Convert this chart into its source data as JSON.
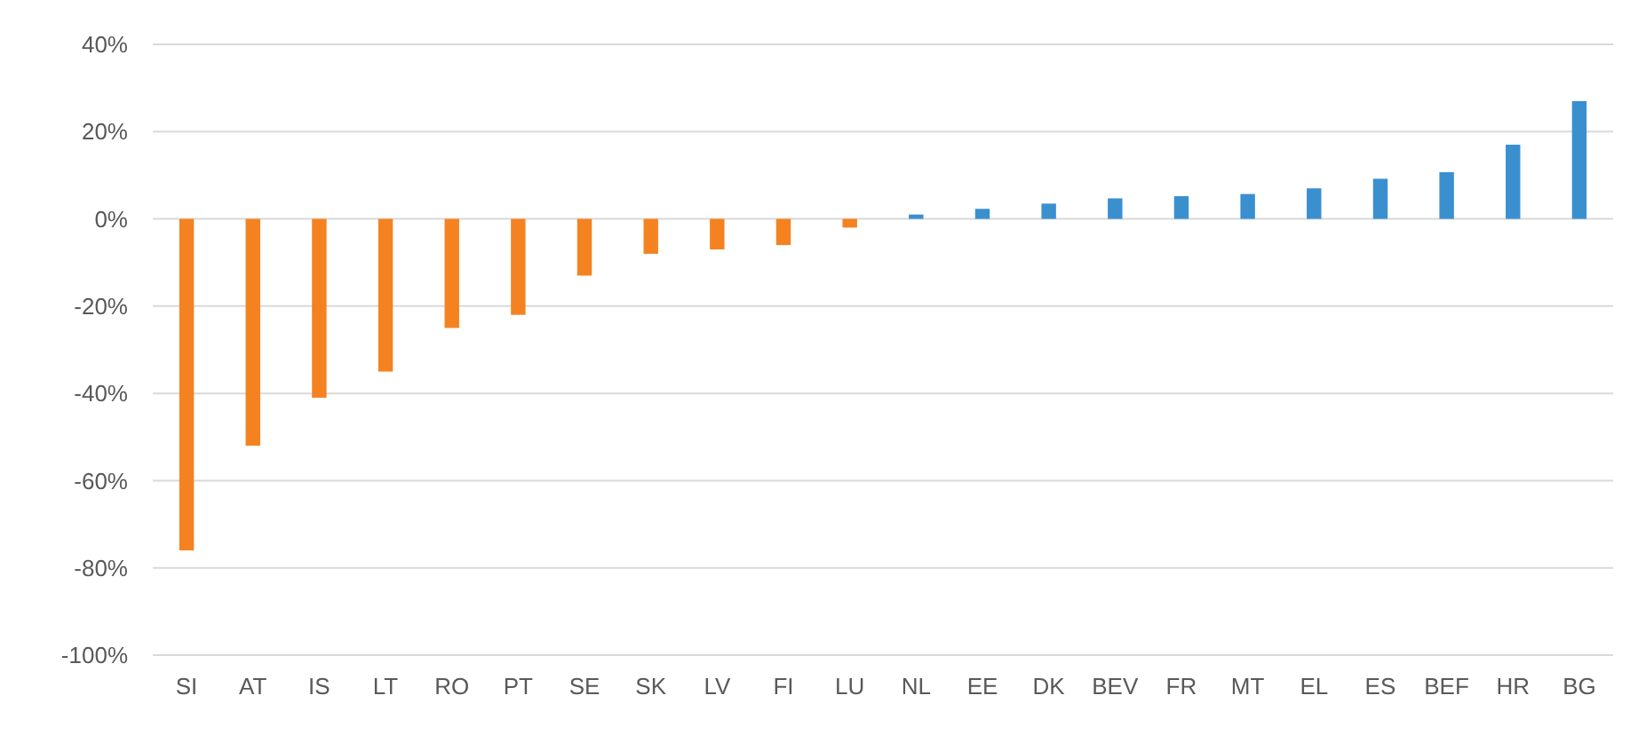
{
  "chart_data": {
    "type": "bar",
    "categories": [
      "SI",
      "AT",
      "IS",
      "LT",
      "RO",
      "PT",
      "SE",
      "SK",
      "LV",
      "FI",
      "LU",
      "NL",
      "EE",
      "DK",
      "BEV",
      "FR",
      "MT",
      "EL",
      "ES",
      "BEF",
      "HR",
      "BG"
    ],
    "values": [
      -76,
      -52,
      -41,
      -35,
      -25,
      -22,
      -13,
      -8,
      -7,
      -6,
      -2,
      1,
      2.3,
      3.5,
      4.7,
      5.2,
      5.7,
      7,
      9.2,
      10.7,
      17,
      27
    ],
    "colors": [
      "#f58220",
      "#f58220",
      "#f58220",
      "#f58220",
      "#f58220",
      "#f58220",
      "#f58220",
      "#f58220",
      "#f58220",
      "#f58220",
      "#f58220",
      "#3a8fcf",
      "#3a8fcf",
      "#3a8fcf",
      "#3a8fcf",
      "#3a8fcf",
      "#3a8fcf",
      "#3a8fcf",
      "#3a8fcf",
      "#3a8fcf",
      "#3a8fcf",
      "#3a8fcf"
    ],
    "ylim": [
      -100,
      40
    ],
    "yticks": [
      {
        "value": -100,
        "label": "-100%"
      },
      {
        "value": -80,
        "label": "-80%"
      },
      {
        "value": -60,
        "label": "-60%"
      },
      {
        "value": -40,
        "label": "-40%"
      },
      {
        "value": -20,
        "label": "-20%"
      },
      {
        "value": 0,
        "label": "0%"
      },
      {
        "value": 20,
        "label": "20%"
      },
      {
        "value": 40,
        "label": "40%"
      }
    ],
    "grid": "y"
  }
}
